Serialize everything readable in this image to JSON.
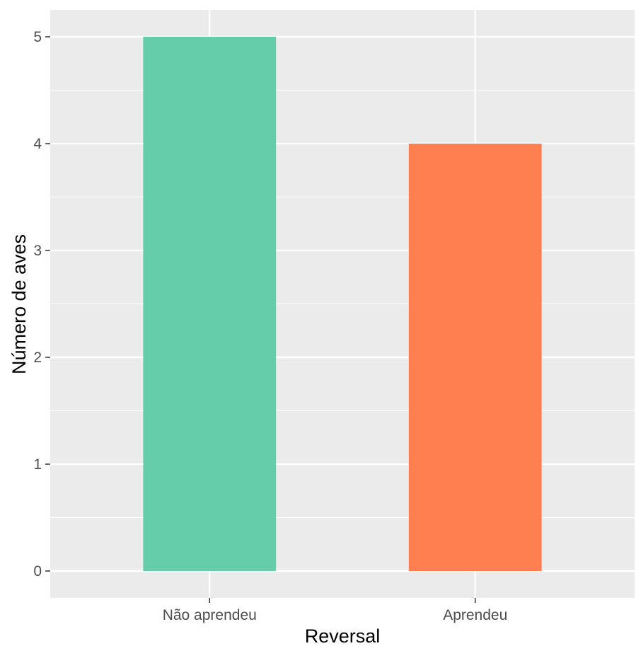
{
  "chart_data": {
    "type": "bar",
    "title": "",
    "xlabel": "Reversal",
    "ylabel": "Número de aves",
    "categories": [
      "Não aprendeu",
      "Aprendeu"
    ],
    "values": [
      5,
      4
    ],
    "colors": [
      "#66CDAA",
      "#FF7F50"
    ],
    "ylim": [
      0,
      5.25
    ],
    "yticks": [
      0,
      1,
      2,
      3,
      4,
      5
    ],
    "ytick_labels": [
      "0",
      "1",
      "2",
      "3",
      "4",
      "5"
    ],
    "grid": true,
    "legend": "none",
    "panel_color": "#EBEBEB",
    "grid_color": "#FFFFFF"
  }
}
